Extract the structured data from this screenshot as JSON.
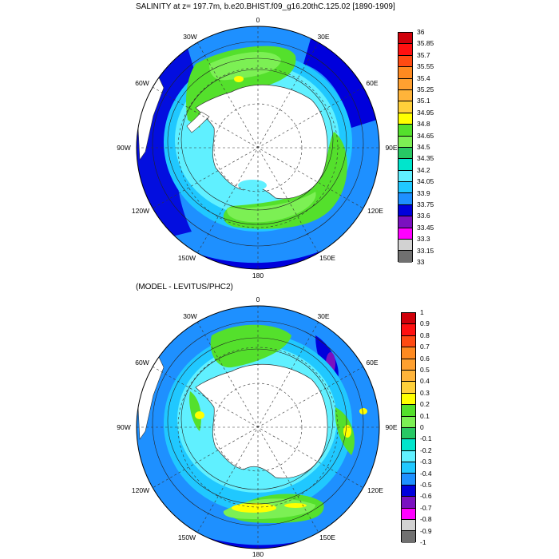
{
  "panels": [
    {
      "title": "SALINITY at z= 197.7m, b.e20.BHIST.f09_g16.20thC.125.02 [1890-1909]",
      "colorbar": {
        "labels": [
          "36",
          "35.85",
          "35.7",
          "35.55",
          "35.4",
          "35.25",
          "35.1",
          "34.95",
          "34.8",
          "34.65",
          "34.5",
          "34.35",
          "34.2",
          "34.05",
          "33.9",
          "33.75",
          "33.6",
          "33.45",
          "33.3",
          "33.15",
          "33"
        ],
        "colors": [
          "#d0000a",
          "#ff1010",
          "#ff4a12",
          "#ff8a20",
          "#ffa030",
          "#ffb43a",
          "#ffd03a",
          "#ffff00",
          "#54e02c",
          "#7cf054",
          "#28c864",
          "#00e5cc",
          "#60f0ff",
          "#20c8ff",
          "#1e90ff",
          "#0000dc",
          "#7a10c0",
          "#ff00ff",
          "#d2d2d2",
          "#707070"
        ]
      },
      "lon_labels": [
        "0",
        "30E",
        "60E",
        "90E",
        "120E",
        "150E",
        "180",
        "150W",
        "120W",
        "90W",
        "60W",
        "30W"
      ],
      "contours": [
        {
          "d": [
            8,
            9,
            12,
            15,
            13,
            10,
            9,
            8,
            9,
            11,
            10,
            8
          ]
        },
        {
          "d": [
            6,
            7,
            10,
            12,
            10,
            8,
            7,
            6,
            7,
            9,
            8,
            6
          ]
        },
        {
          "d": [
            4,
            5,
            7,
            9,
            8,
            6,
            5,
            4,
            5,
            7,
            6,
            4
          ]
        },
        {
          "d": [
            2,
            3,
            5,
            6,
            5,
            4,
            3,
            3,
            4,
            5,
            4,
            2
          ]
        }
      ]
    },
    {
      "title": "(MODEL - LEVITUS/PHC2)",
      "colorbar": {
        "labels": [
          "1",
          "0.9",
          "0.8",
          "0.7",
          "0.6",
          "0.5",
          "0.4",
          "0.3",
          "0.2",
          "0.1",
          "0",
          "-0.1",
          "-0.2",
          "-0.3",
          "-0.4",
          "-0.5",
          "-0.6",
          "-0.7",
          "-0.8",
          "-0.9",
          "-1"
        ],
        "colors": [
          "#d0000a",
          "#ff1010",
          "#ff4a12",
          "#ff8a20",
          "#ffa030",
          "#ffb43a",
          "#ffd03a",
          "#ffff00",
          "#54e02c",
          "#7cf054",
          "#28c864",
          "#00e5cc",
          "#60f0ff",
          "#20c8ff",
          "#1e90ff",
          "#0000dc",
          "#7a10c0",
          "#ff00ff",
          "#d2d2d2",
          "#707070"
        ]
      },
      "lon_labels": [
        "0",
        "30E",
        "60E",
        "90E",
        "120E",
        "150E",
        "180",
        "150W",
        "120W",
        "90W",
        "60W",
        "30W"
      ],
      "contours": [
        {
          "d": [
            8,
            9,
            12,
            15,
            13,
            10,
            9,
            8,
            9,
            11,
            10,
            8
          ]
        },
        {
          "d": [
            6,
            7,
            10,
            12,
            10,
            8,
            7,
            6,
            7,
            9,
            8,
            6
          ]
        },
        {
          "d": [
            4,
            5,
            7,
            9,
            8,
            6,
            5,
            4,
            5,
            7,
            6,
            4
          ]
        },
        {
          "d": [
            2,
            3,
            5,
            6,
            5,
            4,
            3,
            3,
            4,
            5,
            4,
            2
          ]
        }
      ]
    }
  ],
  "colors": {
    "ocean_outer": "#1e90ff",
    "ocean_deep_blue": "#0000dc",
    "ocean_mid": "#20c8ff",
    "ocean_light": "#60f0ff",
    "green": "#54e02c",
    "green_dark": "#28c864",
    "yellow": "#ffff00",
    "purple": "#7a10c0",
    "land": "#ffffff"
  }
}
